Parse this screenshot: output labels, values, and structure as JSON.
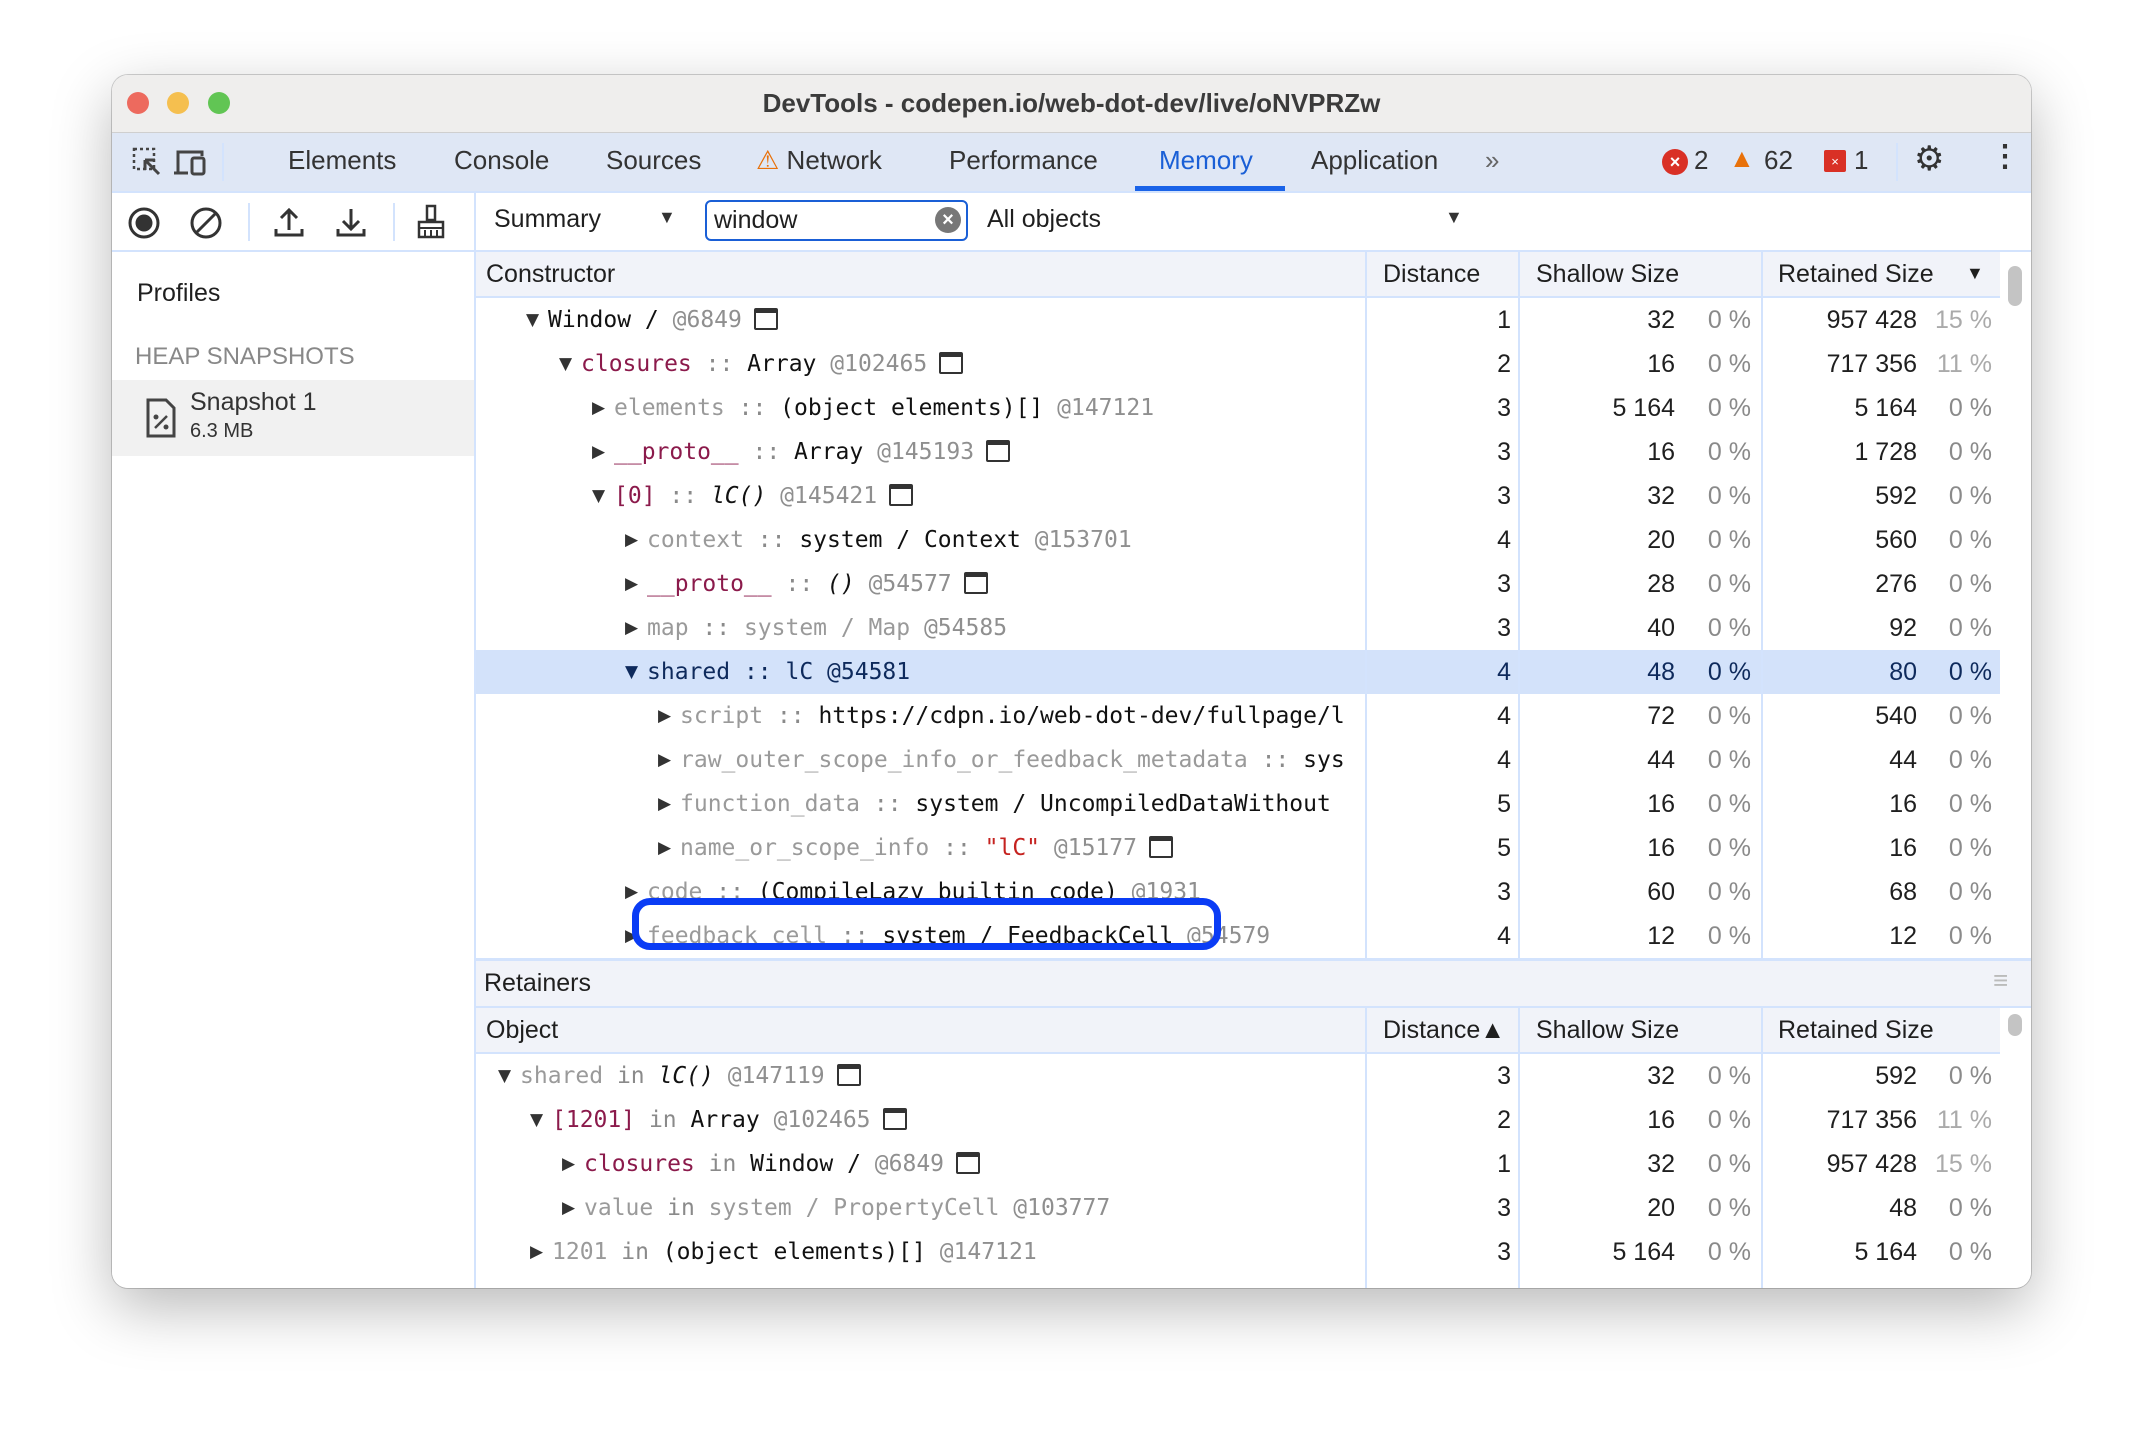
{
  "window": {
    "title": "DevTools - codepen.io/web-dot-dev/live/oNVPRZw"
  },
  "tabs": [
    {
      "label": "Elements"
    },
    {
      "label": "Console"
    },
    {
      "label": "Sources"
    },
    {
      "label": "Network",
      "icon": "warning-icon"
    },
    {
      "label": "Performance"
    },
    {
      "label": "Memory",
      "active": true
    },
    {
      "label": "Application"
    }
  ],
  "status": {
    "errors": "2",
    "warnings": "62",
    "issues": "1"
  },
  "toolbar": {
    "view": "Summary",
    "filter_value": "window",
    "objects": "All objects"
  },
  "sidebar": {
    "title": "Profiles",
    "section": "HEAP SNAPSHOTS",
    "snapshot_name": "Snapshot 1",
    "snapshot_size": "6.3 MB"
  },
  "colors": {
    "accent": "#1a63e8",
    "highlight_box": "#0a3cf5",
    "selected_row": "#d3e2fa",
    "property": "#8b1a4b",
    "string": "#c5221f"
  },
  "constructors": {
    "headers": {
      "name": "Constructor",
      "distance": "Distance",
      "shallow": "Shallow Size",
      "retained": "Retained Size",
      "sort": "▼"
    },
    "rows": [
      {
        "depth": 0,
        "expanded": true,
        "segs": [
          [
            "Window / ",
            "type"
          ],
          [
            " @6849",
            "id"
          ]
        ],
        "winicon": true,
        "d": "1",
        "s": "32",
        "sp": "0 %",
        "r": "957 428",
        "rp": "15 %"
      },
      {
        "depth": 1,
        "expanded": true,
        "segs": [
          [
            "closures",
            "prop"
          ],
          [
            " :: ",
            "sep"
          ],
          [
            "Array",
            "type"
          ],
          [
            " @102465",
            "id"
          ]
        ],
        "winicon": true,
        "d": "2",
        "s": "16",
        "sp": "0 %",
        "r": "717 356",
        "rp": "11 %"
      },
      {
        "depth": 2,
        "expanded": false,
        "segs": [
          [
            "elements",
            "internal"
          ],
          [
            " :: ",
            "sep"
          ],
          [
            "(object elements)[]",
            "type"
          ],
          [
            " @147121",
            "id"
          ]
        ],
        "d": "3",
        "s": "5 164",
        "sp": "0 %",
        "r": "5 164",
        "rp": "0 %"
      },
      {
        "depth": 2,
        "expanded": false,
        "segs": [
          [
            "__proto__",
            "prop"
          ],
          [
            " :: ",
            "sep"
          ],
          [
            "Array",
            "type"
          ],
          [
            " @145193",
            "id"
          ]
        ],
        "winicon": true,
        "d": "3",
        "s": "16",
        "sp": "0 %",
        "r": "1 728",
        "rp": "0 %"
      },
      {
        "depth": 2,
        "expanded": true,
        "segs": [
          [
            "[0]",
            "prop"
          ],
          [
            " :: ",
            "sep"
          ],
          [
            "lC()",
            "italic"
          ],
          [
            " @145421",
            "id"
          ]
        ],
        "winicon": true,
        "d": "3",
        "s": "32",
        "sp": "0 %",
        "r": "592",
        "rp": "0 %"
      },
      {
        "depth": 3,
        "expanded": false,
        "segs": [
          [
            "context",
            "internal"
          ],
          [
            " :: ",
            "sep"
          ],
          [
            "system / Context",
            "type"
          ],
          [
            " @153701",
            "id"
          ]
        ],
        "d": "4",
        "s": "20",
        "sp": "0 %",
        "r": "560",
        "rp": "0 %"
      },
      {
        "depth": 3,
        "expanded": false,
        "segs": [
          [
            "__proto__",
            "prop"
          ],
          [
            " :: ",
            "sep"
          ],
          [
            "()",
            "italic"
          ],
          [
            " @54577",
            "id"
          ]
        ],
        "winicon": true,
        "d": "3",
        "s": "28",
        "sp": "0 %",
        "r": "276",
        "rp": "0 %"
      },
      {
        "depth": 3,
        "expanded": false,
        "segs": [
          [
            "map",
            "internal"
          ],
          [
            " :: ",
            "sep"
          ],
          [
            "system / Map",
            "gray"
          ],
          [
            " @54585",
            "id"
          ]
        ],
        "d": "3",
        "s": "40",
        "sp": "0 %",
        "r": "92",
        "rp": "0 %"
      },
      {
        "depth": 3,
        "expanded": true,
        "selected": true,
        "segs": [
          [
            "shared",
            "type"
          ],
          [
            " :: ",
            "sep"
          ],
          [
            "lC",
            "type"
          ],
          [
            " @54581",
            "id"
          ]
        ],
        "d": "4",
        "s": "48",
        "sp": "0 %",
        "r": "80",
        "rp": "0 %"
      },
      {
        "depth": 4,
        "expanded": false,
        "segs": [
          [
            "script",
            "internal"
          ],
          [
            " :: ",
            "sep"
          ],
          [
            "https://cdpn.io/web-dot-dev/fullpage/l",
            "type"
          ]
        ],
        "d": "4",
        "s": "72",
        "sp": "0 %",
        "r": "540",
        "rp": "0 %"
      },
      {
        "depth": 4,
        "expanded": false,
        "segs": [
          [
            "raw_outer_scope_info_or_feedback_metadata",
            "internal"
          ],
          [
            " :: ",
            "sep"
          ],
          [
            "sys",
            "type"
          ]
        ],
        "d": "4",
        "s": "44",
        "sp": "0 %",
        "r": "44",
        "rp": "0 %"
      },
      {
        "depth": 4,
        "expanded": false,
        "segs": [
          [
            "function_data",
            "internal"
          ],
          [
            " :: ",
            "sep"
          ],
          [
            "system / UncompiledDataWithout",
            "type"
          ]
        ],
        "d": "5",
        "s": "16",
        "sp": "0 %",
        "r": "16",
        "rp": "0 %"
      },
      {
        "depth": 4,
        "expanded": false,
        "highlighted": true,
        "segs": [
          [
            "name_or_scope_info",
            "internal"
          ],
          [
            " :: ",
            "sep"
          ],
          [
            "\"lC\"",
            "string"
          ],
          [
            " @15177",
            "id"
          ]
        ],
        "winicon": true,
        "d": "5",
        "s": "16",
        "sp": "0 %",
        "r": "16",
        "rp": "0 %"
      },
      {
        "depth": 3,
        "expanded": false,
        "segs": [
          [
            "code",
            "internal"
          ],
          [
            " :: ",
            "sep"
          ],
          [
            "(CompileLazy builtin code)",
            "type"
          ],
          [
            " @1931",
            "id"
          ]
        ],
        "d": "3",
        "s": "60",
        "sp": "0 %",
        "r": "68",
        "rp": "0 %"
      },
      {
        "depth": 3,
        "expanded": false,
        "segs": [
          [
            "feedback_cell",
            "internal"
          ],
          [
            " :: ",
            "sep"
          ],
          [
            "system / FeedbackCell",
            "type"
          ],
          [
            " @54579",
            "id"
          ]
        ],
        "d": "4",
        "s": "12",
        "sp": "0 %",
        "r": "12",
        "rp": "0 %"
      }
    ]
  },
  "retainers": {
    "title": "Retainers",
    "headers": {
      "name": "Object",
      "distance": "Distance▲",
      "shallow": "Shallow Size",
      "retained": "Retained Size"
    },
    "rows": [
      {
        "depth": 0,
        "expanded": true,
        "segs": [
          [
            "shared",
            "internal"
          ],
          [
            " in ",
            "in"
          ],
          [
            "lC()",
            "italic"
          ],
          [
            " @147119",
            "id"
          ]
        ],
        "winicon": true,
        "d": "3",
        "s": "32",
        "sp": "0 %",
        "r": "592",
        "rp": "0 %"
      },
      {
        "depth": 1,
        "expanded": true,
        "segs": [
          [
            "[1201]",
            "prop"
          ],
          [
            " in ",
            "in"
          ],
          [
            "Array",
            "type"
          ],
          [
            " @102465",
            "id"
          ]
        ],
        "winicon": true,
        "d": "2",
        "s": "16",
        "sp": "0 %",
        "r": "717 356",
        "rp": "11 %"
      },
      {
        "depth": 2,
        "expanded": false,
        "segs": [
          [
            "closures",
            "prop"
          ],
          [
            " in ",
            "in"
          ],
          [
            "Window / ",
            "type"
          ],
          [
            " @6849",
            "id"
          ]
        ],
        "winicon": true,
        "d": "1",
        "s": "32",
        "sp": "0 %",
        "r": "957 428",
        "rp": "15 %"
      },
      {
        "depth": 2,
        "expanded": false,
        "segs": [
          [
            "value",
            "internal"
          ],
          [
            " in ",
            "in"
          ],
          [
            "system / PropertyCell",
            "gray"
          ],
          [
            " @103777",
            "id"
          ]
        ],
        "d": "3",
        "s": "20",
        "sp": "0 %",
        "r": "48",
        "rp": "0 %"
      },
      {
        "depth": 1,
        "expanded": false,
        "segs": [
          [
            "1201",
            "internal"
          ],
          [
            " in ",
            "in"
          ],
          [
            "(object elements)[]",
            "type"
          ],
          [
            " @147121",
            "id"
          ]
        ],
        "d": "3",
        "s": "5 164",
        "sp": "0 %",
        "r": "5 164",
        "rp": "0 %"
      }
    ]
  }
}
